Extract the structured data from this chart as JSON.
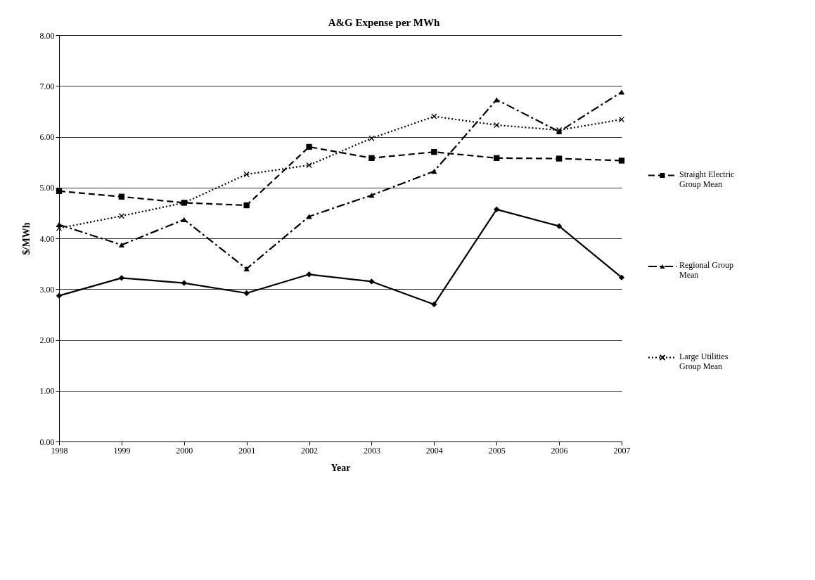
{
  "chart_data": {
    "type": "line",
    "title": "A&G Expense per MWh",
    "xlabel": "Year",
    "ylabel": "$/MWh",
    "categories": [
      "1998",
      "1999",
      "2000",
      "2001",
      "2002",
      "2003",
      "2004",
      "2005",
      "2006",
      "2007"
    ],
    "series": [
      {
        "color": "#000000",
        "marker": "diamond",
        "line_style": "solid",
        "values": [
          2.87,
          3.22,
          3.12,
          2.92,
          3.29,
          3.15,
          2.7,
          4.57,
          4.24,
          3.23
        ]
      },
      {
        "name": "Straight Electric Group Mean",
        "color": "#000000",
        "marker": "square",
        "line_style": "dashed",
        "values": [
          4.93,
          4.82,
          4.7,
          4.65,
          5.8,
          5.58,
          5.7,
          5.58,
          5.57,
          5.53
        ]
      },
      {
        "name": "Regional Group Mean",
        "color": "#000000",
        "marker": "triangle",
        "line_style": "dashdot",
        "values": [
          4.27,
          3.87,
          4.37,
          3.4,
          4.43,
          4.85,
          5.32,
          6.73,
          6.1,
          6.88
        ]
      },
      {
        "name": "Large Utilities Group Mean",
        "color": "#000000",
        "marker": "cross",
        "line_style": "dotted",
        "values": [
          4.2,
          4.44,
          4.7,
          5.26,
          5.44,
          5.97,
          6.4,
          6.23,
          6.13,
          6.34
        ]
      }
    ],
    "ylim": [
      0,
      8
    ],
    "yticks": [
      {
        "value": 0,
        "label": "0.00"
      },
      {
        "value": 1,
        "label": "1.00"
      },
      {
        "value": 2,
        "label": "2.00"
      },
      {
        "value": 3,
        "label": "3.00"
      },
      {
        "value": 4,
        "label": "4.00"
      },
      {
        "value": 5,
        "label": "5.00"
      },
      {
        "value": 6,
        "label": "6.00"
      },
      {
        "value": 7,
        "label": "7.00"
      },
      {
        "value": 8,
        "label": "8.00"
      }
    ],
    "grid": "y",
    "legend": "right"
  }
}
